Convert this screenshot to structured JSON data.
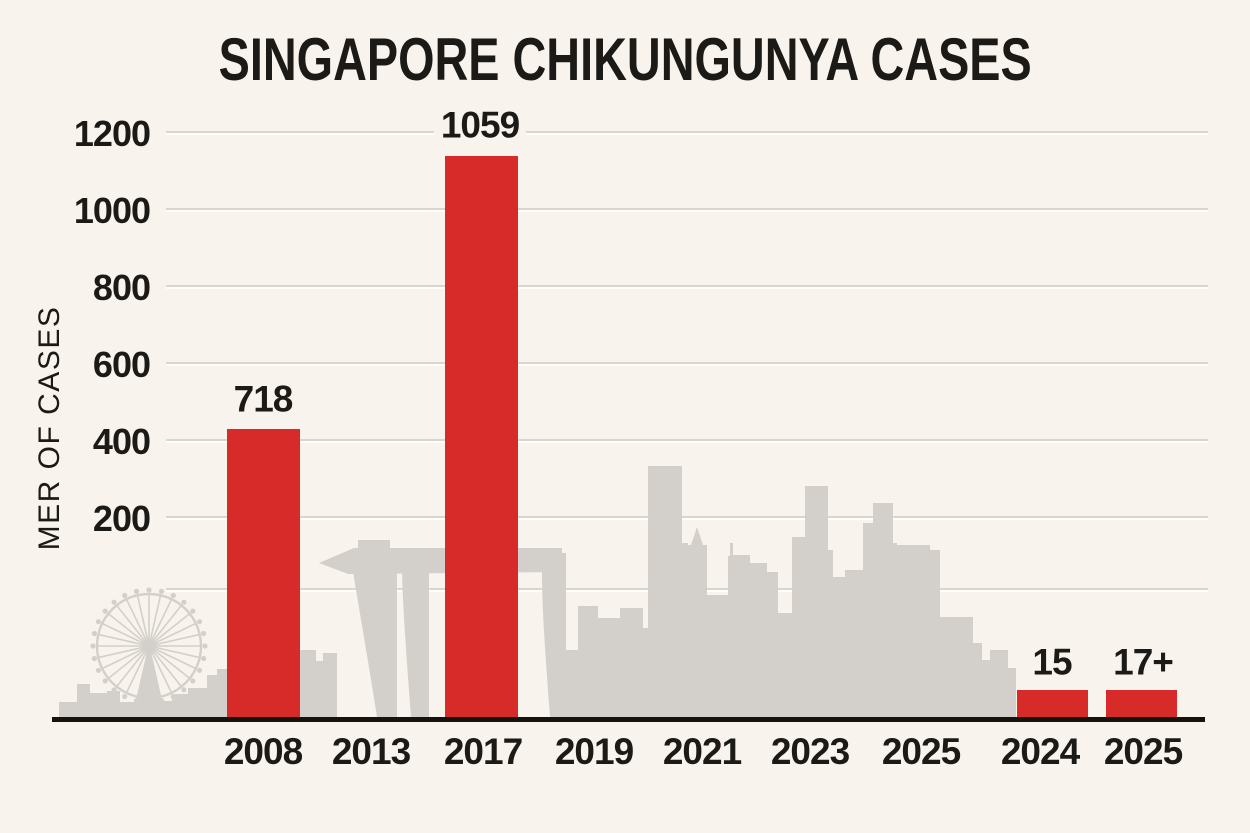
{
  "chart_data": {
    "type": "bar",
    "title": "SINGAPORE CHIKUNGUNYA CASES",
    "ylabel": "MER OF CASES",
    "y_ticks": [
      "1200",
      "1000",
      "800",
      "600",
      "400",
      "200"
    ],
    "y_tick_values": [
      1200,
      1000,
      800,
      600,
      400,
      200
    ],
    "ylim": [
      0,
      1200
    ],
    "grid": true,
    "x_tick_labels": [
      "2008",
      "2013",
      "2017",
      "2019",
      "2021",
      "2023",
      "2025",
      "2024",
      "2025"
    ],
    "bars": [
      {
        "category": "2008",
        "value": 718,
        "value_label": "718",
        "x_index": 0
      },
      {
        "category": "2017",
        "value": 1059,
        "value_label": "1059",
        "x_index": 2
      },
      {
        "category": "2024",
        "value": 15,
        "value_label": "15",
        "x_index": 7
      },
      {
        "category": "2025",
        "value": 17,
        "value_label": "17+",
        "x_index": 8
      }
    ],
    "series_color": "#d62b28",
    "background_color": "#f8f3ec",
    "skyline_color": "#d3d0cb",
    "background_art": "singapore-city-skyline-silhouette"
  }
}
